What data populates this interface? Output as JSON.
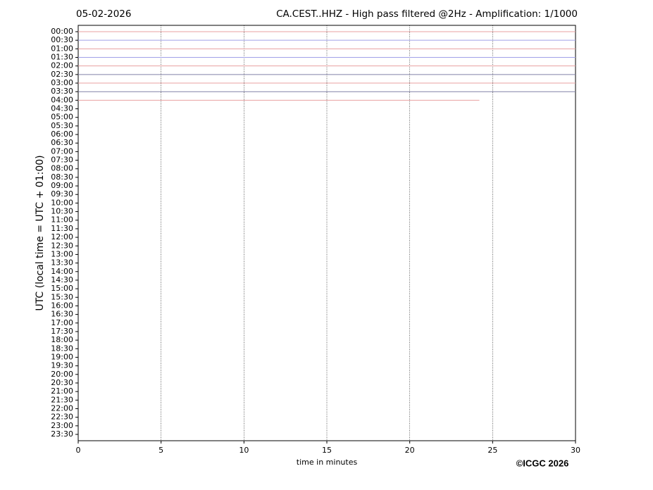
{
  "chart_data": {
    "type": "helicorder",
    "date": "05-02-2026",
    "title": "CA.CEST..HHZ - High pass filtered @2Hz - Amplification: 1/1000",
    "y_label": "UTC (local time = UTC + 01:00)",
    "x_label": "time in minutes",
    "copyright": "©ICGC 2026",
    "rows": [
      "00:00",
      "00:30",
      "01:00",
      "01:30",
      "02:00",
      "02:30",
      "03:00",
      "03:30",
      "04:00",
      "04:30",
      "05:00",
      "05:30",
      "06:00",
      "06:30",
      "07:00",
      "07:30",
      "08:00",
      "08:30",
      "09:00",
      "09:30",
      "10:00",
      "10:30",
      "11:00",
      "11:30",
      "12:00",
      "12:30",
      "13:00",
      "13:30",
      "14:00",
      "14:30",
      "15:00",
      "15:30",
      "16:00",
      "16:30",
      "17:00",
      "17:30",
      "18:00",
      "18:30",
      "19:00",
      "19:30",
      "20:00",
      "20:30",
      "21:00",
      "21:30",
      "22:00",
      "22:30",
      "23:00",
      "23:30"
    ],
    "trace_colors": [
      "#e8a0a0",
      "#a0a0e8",
      "#e8a0a0",
      "#a0a0e8",
      "#e8a0a0",
      "#8080a8",
      "#e8a0a0",
      "#8080a8",
      "#e8a0a0"
    ],
    "trace_ends": [
      30,
      30,
      30,
      30,
      30,
      30,
      30,
      30,
      24.2
    ],
    "xlim": [
      0,
      30
    ],
    "xticks": [
      0,
      5,
      10,
      15,
      20,
      25,
      30
    ],
    "grid": true
  }
}
